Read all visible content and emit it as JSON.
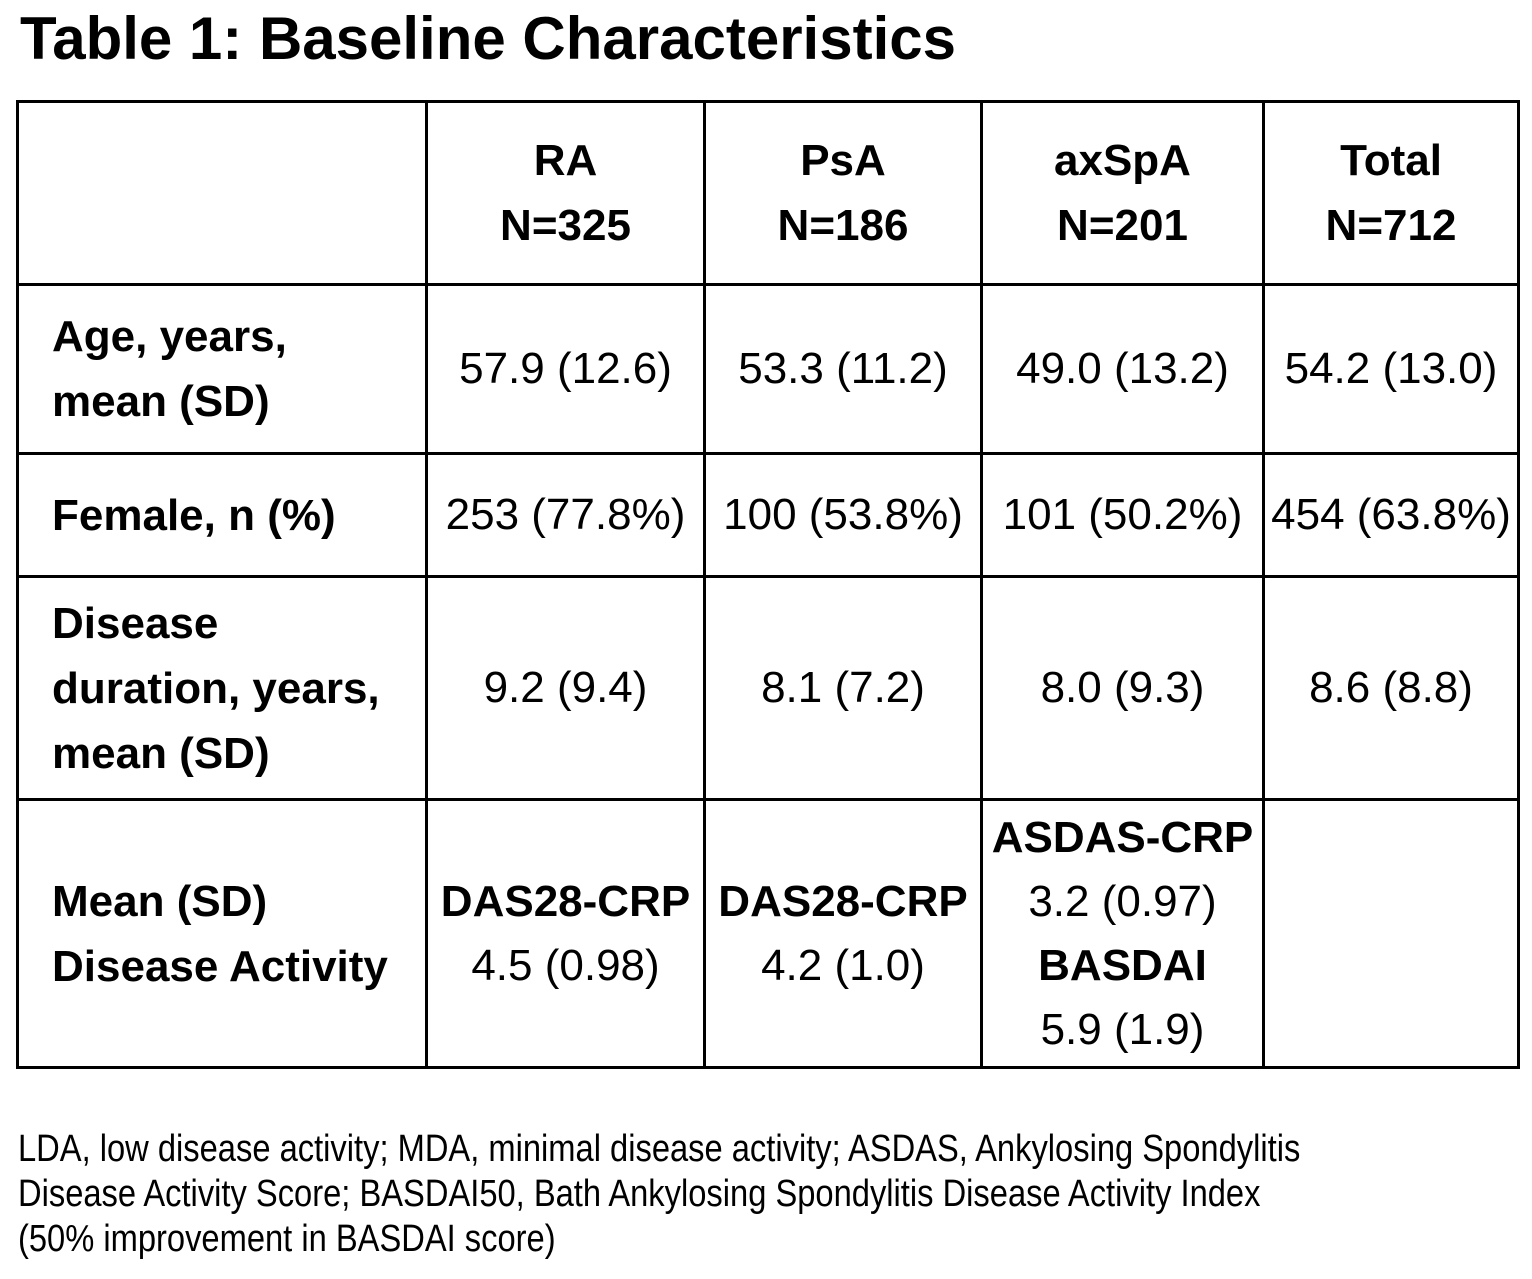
{
  "title": "Table 1: Baseline Characteristics",
  "colors": {
    "text": "#000000",
    "background": "#ffffff",
    "border": "#000000"
  },
  "table": {
    "header": {
      "corner": "",
      "columns": [
        {
          "label": "RA",
          "n": "N=325"
        },
        {
          "label": "PsA",
          "n": "N=186"
        },
        {
          "label": "axSpA",
          "n": "N=201"
        },
        {
          "label": "Total",
          "n": "N=712"
        }
      ]
    },
    "rows": [
      {
        "id": "age",
        "label_lines": [
          "Age, years,",
          "mean (SD)"
        ],
        "cells": [
          {
            "lines": [
              {
                "text": "57.9 (12.6)",
                "bold": false
              }
            ]
          },
          {
            "lines": [
              {
                "text": "53.3 (11.2)",
                "bold": false
              }
            ]
          },
          {
            "lines": [
              {
                "text": "49.0 (13.2)",
                "bold": false
              }
            ]
          },
          {
            "lines": [
              {
                "text": "54.2 (13.0)",
                "bold": false
              }
            ]
          }
        ]
      },
      {
        "id": "female",
        "label_lines": [
          "Female, n (%)"
        ],
        "cells": [
          {
            "lines": [
              {
                "text": "253 (77.8%)",
                "bold": false
              }
            ]
          },
          {
            "lines": [
              {
                "text": "100 (53.8%)",
                "bold": false
              }
            ]
          },
          {
            "lines": [
              {
                "text": "101 (50.2%)",
                "bold": false
              }
            ]
          },
          {
            "lines": [
              {
                "text": "454 (63.8%)",
                "bold": false
              }
            ]
          }
        ]
      },
      {
        "id": "disease-duration",
        "label_lines": [
          "Disease",
          "duration, years,",
          "mean (SD)"
        ],
        "cells": [
          {
            "lines": [
              {
                "text": "9.2 (9.4)",
                "bold": false
              }
            ]
          },
          {
            "lines": [
              {
                "text": "8.1 (7.2)",
                "bold": false
              }
            ]
          },
          {
            "lines": [
              {
                "text": "8.0 (9.3)",
                "bold": false
              }
            ]
          },
          {
            "lines": [
              {
                "text": "8.6 (8.8)",
                "bold": false
              }
            ]
          }
        ]
      },
      {
        "id": "disease-activity",
        "label_lines": [
          "Mean (SD)",
          "Disease Activity"
        ],
        "cells": [
          {
            "lines": [
              {
                "text": "DAS28-CRP",
                "bold": true
              },
              {
                "text": "4.5 (0.98)",
                "bold": false
              }
            ]
          },
          {
            "lines": [
              {
                "text": "DAS28-CRP",
                "bold": true
              },
              {
                "text": "4.2 (1.0)",
                "bold": false
              }
            ]
          },
          {
            "lines": [
              {
                "text": "ASDAS-CRP",
                "bold": true
              },
              {
                "text": "3.2 (0.97)",
                "bold": false
              },
              {
                "text": "BASDAI",
                "bold": true
              },
              {
                "text": "5.9 (1.9)",
                "bold": false
              }
            ]
          },
          {
            "lines": []
          }
        ]
      }
    ]
  },
  "footnote_lines": [
    "LDA, low disease activity; MDA, minimal disease activity; ASDAS, Ankylosing Spondylitis",
    "Disease Activity Score; BASDAI50, Bath Ankylosing Spondylitis Disease Activity Index",
    "(50% improvement in BASDAI score)"
  ]
}
